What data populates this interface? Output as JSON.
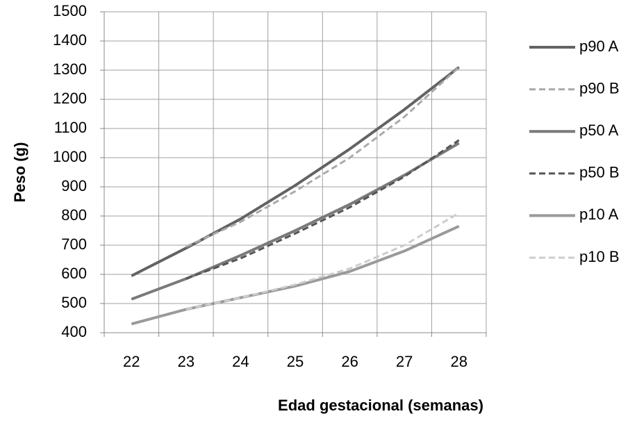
{
  "chart_data": {
    "type": "line",
    "x_label": "Edad gestacional (semanas)",
    "y_label": "Peso (g)",
    "categories": [
      "22",
      "23",
      "24",
      "25",
      "26",
      "27",
      "28"
    ],
    "ylim": [
      400,
      1500
    ],
    "yticks": [
      400,
      500,
      600,
      700,
      800,
      900,
      1000,
      1100,
      1200,
      1300,
      1400,
      1500
    ],
    "grid": true,
    "legend": "right",
    "series": [
      {
        "name": "p90 A",
        "color": "#636363",
        "dash": false,
        "values": [
          595,
          690,
          790,
          905,
          1030,
          1165,
          1310
        ]
      },
      {
        "name": "p90 B",
        "color": "#aaaaaa",
        "dash": true,
        "values": [
          null,
          695,
          780,
          885,
          1000,
          1140,
          1310
        ]
      },
      {
        "name": "p50 A",
        "color": "#7a7a7a",
        "dash": false,
        "values": [
          515,
          585,
          665,
          750,
          840,
          940,
          1050
        ]
      },
      {
        "name": "p50 B",
        "color": "#555555",
        "dash": true,
        "values": [
          null,
          585,
          655,
          740,
          830,
          935,
          1060
        ]
      },
      {
        "name": "p10 A",
        "color": "#9a9a9a",
        "dash": false,
        "values": [
          430,
          480,
          520,
          560,
          610,
          680,
          765
        ]
      },
      {
        "name": "p10 B",
        "color": "#cccccc",
        "dash": true,
        "values": [
          null,
          480,
          520,
          565,
          620,
          700,
          810
        ]
      }
    ]
  }
}
